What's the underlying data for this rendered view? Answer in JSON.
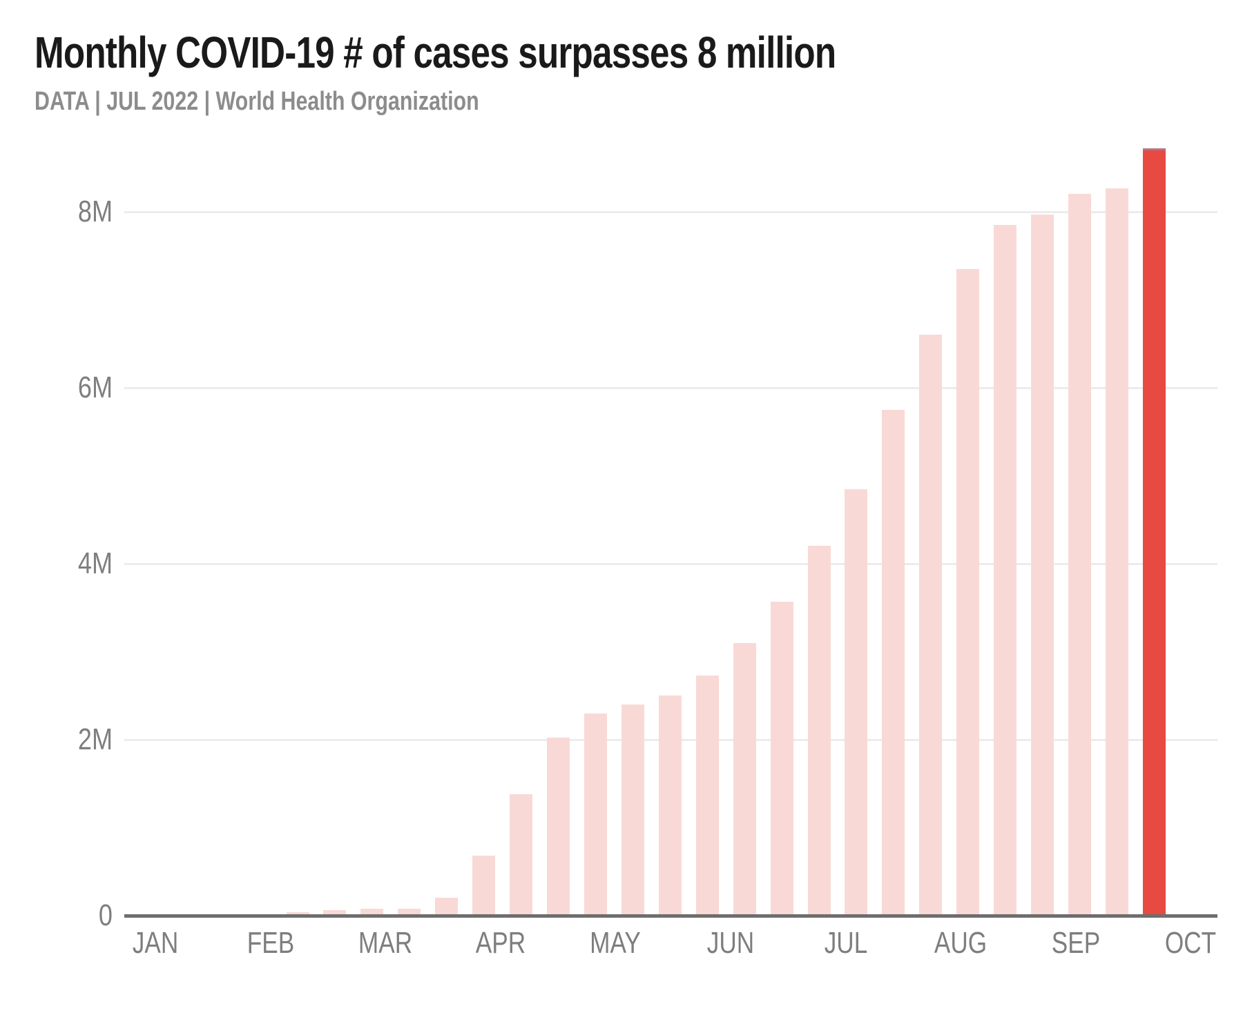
{
  "title": "Monthly COVID-19 # of cases surpasses 8 million",
  "subtitle": "DATA | JUL 2022 | World Health Organization",
  "chart_data": {
    "type": "bar",
    "title": "Monthly COVID-19 # of cases surpasses 8 million",
    "subtitle": "DATA | JUL 2022 | World Health Organization",
    "unit": "millions of cases",
    "x_tick_labels": [
      "JAN",
      "FEB",
      "MAR",
      "APR",
      "MAY",
      "JUN",
      "JUL",
      "AUG",
      "SEP",
      "OCT"
    ],
    "y_tick_labels": [
      "0",
      "2M",
      "4M",
      "6M",
      "8M"
    ],
    "y_tick_values": [
      0,
      2,
      4,
      6,
      8
    ],
    "ylim": [
      0,
      9.0
    ],
    "grid": "horizontal",
    "legend": "none",
    "series": [
      {
        "name": "COVID-19 cases",
        "values_millions": [
          0.04,
          0.06,
          0.08,
          0.08,
          0.2,
          0.68,
          1.38,
          2.02,
          2.3,
          2.4,
          2.5,
          2.73,
          3.1,
          3.57,
          4.2,
          4.85,
          5.75,
          6.6,
          7.35,
          7.85,
          7.97,
          8.2,
          8.27,
          8.72
        ]
      }
    ],
    "highlight_index": 23,
    "colors": {
      "bar": "#f9d9d6",
      "highlight_bar": "#e84a42",
      "highlight_cap": "#9b8795",
      "gridline": "#ececec",
      "axis_line": "#6e6e6e",
      "tick_label": "#7e7e7e",
      "title": "#1a1a1a",
      "subtitle": "#8c8c8c",
      "background": "#ffffff"
    }
  }
}
